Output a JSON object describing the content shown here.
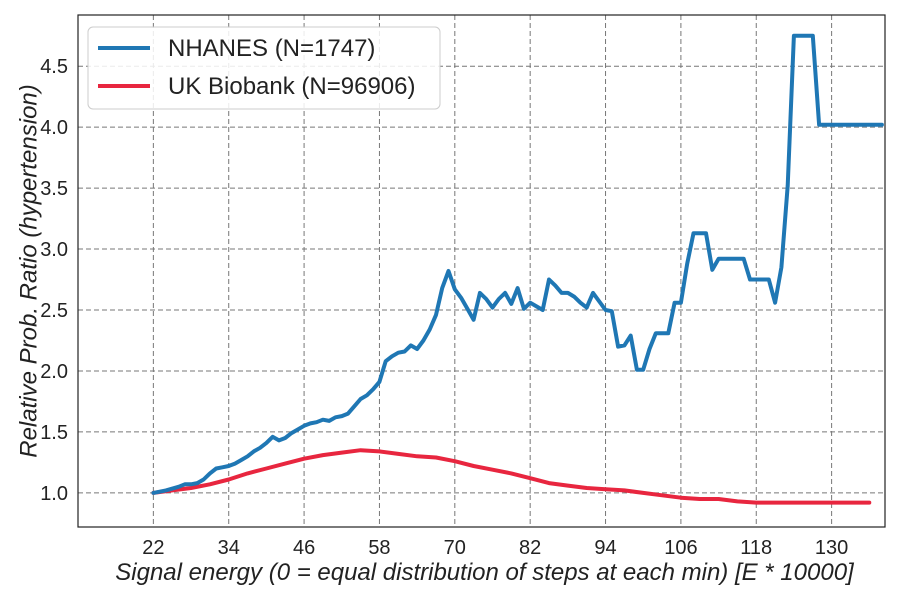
{
  "chart_data": {
    "type": "line",
    "title": "",
    "xlabel": "Signal energy (0 = equal distribution of steps at each min) [E * 10000]",
    "ylabel": "Relative Prob. Ratio (hypertension)",
    "xlim": [
      10,
      138.5
    ],
    "ylim": [
      0.72,
      4.92
    ],
    "xticks": [
      22,
      34,
      46,
      58,
      70,
      82,
      94,
      106,
      118,
      130
    ],
    "yticks": [
      1.0,
      1.5,
      2.0,
      2.5,
      3.0,
      3.5,
      4.0,
      4.5
    ],
    "ytick_labels": [
      "1.0",
      "1.5",
      "2.0",
      "2.5",
      "3.0",
      "3.5",
      "4.0",
      "4.5"
    ],
    "grid": true,
    "legend_position": "top-left",
    "series": [
      {
        "name": "NHANES (N=1747)",
        "color": "#1f77b4",
        "x": [
          22,
          24,
          26,
          27,
          28,
          29,
          30,
          31,
          32,
          33,
          34,
          35,
          36,
          37,
          38,
          39,
          40,
          41,
          42,
          43,
          44,
          45,
          46,
          47,
          48,
          49,
          50,
          51,
          52,
          53,
          54,
          55,
          56,
          57,
          58,
          59,
          60,
          61,
          62,
          63,
          64,
          65,
          66,
          67,
          68,
          69,
          70,
          71,
          72,
          73,
          74,
          75,
          76,
          77,
          78,
          79,
          80,
          81,
          82,
          83,
          84,
          85,
          86,
          87,
          88,
          89,
          90,
          91,
          92,
          93,
          94,
          95,
          96,
          97,
          98,
          99,
          100,
          101,
          102,
          103,
          104,
          105,
          106,
          107,
          108,
          109,
          110,
          111,
          112,
          113,
          114,
          115,
          116,
          117,
          118,
          119,
          120,
          121,
          122,
          123,
          124,
          125,
          126,
          127,
          128,
          129,
          130,
          131,
          132,
          133,
          134,
          135,
          136,
          137,
          138,
          139,
          140,
          141,
          142,
          143
        ],
        "y": [
          1.0,
          1.02,
          1.05,
          1.07,
          1.07,
          1.08,
          1.11,
          1.16,
          1.2,
          1.21,
          1.22,
          1.24,
          1.27,
          1.3,
          1.34,
          1.37,
          1.41,
          1.46,
          1.43,
          1.45,
          1.49,
          1.52,
          1.55,
          1.57,
          1.58,
          1.6,
          1.59,
          1.62,
          1.63,
          1.65,
          1.71,
          1.77,
          1.8,
          1.85,
          1.91,
          2.08,
          2.12,
          2.15,
          2.16,
          2.21,
          2.18,
          2.25,
          2.34,
          2.46,
          2.68,
          2.82,
          2.67,
          2.6,
          2.51,
          2.42,
          2.64,
          2.59,
          2.52,
          2.59,
          2.64,
          2.55,
          2.68,
          2.51,
          2.56,
          2.53,
          2.5,
          2.75,
          2.7,
          2.64,
          2.64,
          2.61,
          2.56,
          2.52,
          2.64,
          2.57,
          2.5,
          2.49,
          2.2,
          2.21,
          2.29,
          2.01,
          2.01,
          2.18,
          2.31,
          2.31,
          2.31,
          2.56,
          2.56,
          2.88,
          3.13,
          3.13,
          3.13,
          2.83,
          2.92,
          2.92,
          2.92,
          2.92,
          2.92,
          2.75,
          2.75,
          2.75,
          2.75,
          2.56,
          2.85,
          3.52,
          4.75,
          4.75,
          4.75,
          4.75,
          4.02,
          4.02,
          4.02,
          4.02,
          4.02,
          4.02,
          4.02,
          4.02,
          4.02,
          4.02,
          4.02,
          4.02,
          4.02,
          4.02,
          4.02,
          3.65
        ]
      },
      {
        "name": "UK Biobank (N=96906)",
        "color": "#e8263f",
        "x": [
          22,
          25,
          28,
          31,
          34,
          37,
          40,
          43,
          46,
          49,
          52,
          55,
          58,
          61,
          64,
          67,
          70,
          73,
          76,
          79,
          82,
          85,
          88,
          91,
          94,
          97,
          100,
          103,
          106,
          109,
          112,
          115,
          118,
          121,
          124,
          127,
          130,
          133,
          136,
          139,
          142,
          143
        ],
        "y": [
          1.0,
          1.02,
          1.04,
          1.07,
          1.11,
          1.16,
          1.2,
          1.24,
          1.28,
          1.31,
          1.33,
          1.35,
          1.34,
          1.32,
          1.3,
          1.29,
          1.26,
          1.22,
          1.19,
          1.16,
          1.12,
          1.08,
          1.06,
          1.04,
          1.03,
          1.02,
          1.0,
          0.98,
          0.96,
          0.95,
          0.95,
          0.93,
          0.92,
          0.92,
          0.92,
          0.92,
          0.92,
          0.92,
          0.92,
          0.92,
          0.92,
          0.92
        ]
      }
    ]
  }
}
